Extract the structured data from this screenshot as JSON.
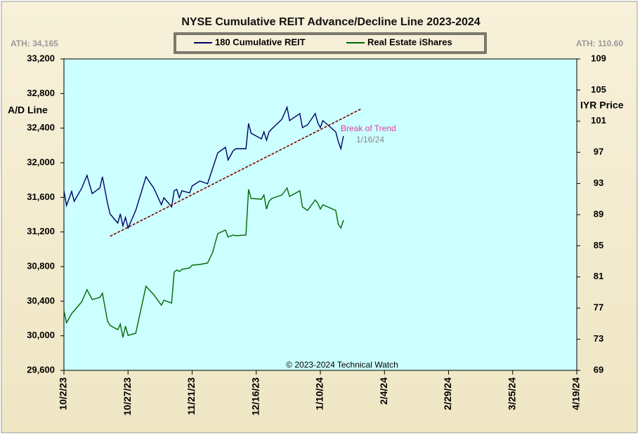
{
  "chart_data": {
    "type": "line",
    "title": "NYSE Cumulative  REIT Advance/Decline  Line 2023-2024",
    "y_label": "A/D Line",
    "y2_label": "IYR Price",
    "ath_left": "ATH: 34,165",
    "ath_right": "ATH: 110.60",
    "copyright": "© 2023-2024  Technical  Watch",
    "annotations": [
      "Break  of Trend",
      "1/16/24"
    ],
    "xlim": [
      "2023-10-02",
      "2024-04-19"
    ],
    "xticks": [
      {
        "value": "2023-10-02",
        "label": "10/2/23"
      },
      {
        "value": "2023-10-27",
        "label": "10/27/23"
      },
      {
        "value": "2023-11-21",
        "label": "11/21/23"
      },
      {
        "value": "2023-12-16",
        "label": "12/16/23"
      },
      {
        "value": "2024-01-10",
        "label": "1/10/24"
      },
      {
        "value": "2024-02-04",
        "label": "2/4/24"
      },
      {
        "value": "2024-02-29",
        "label": "2/29/24"
      },
      {
        "value": "2024-03-25",
        "label": "3/25/24"
      },
      {
        "value": "2024-04-19",
        "label": "4/19/24"
      }
    ],
    "ylim": [
      29600,
      33200
    ],
    "yticks": [
      {
        "value": 29600,
        "label": "29,600"
      },
      {
        "value": 30000,
        "label": "30,000"
      },
      {
        "value": 30400,
        "label": "30,400"
      },
      {
        "value": 30800,
        "label": "30,800"
      },
      {
        "value": 31200,
        "label": "31,200"
      },
      {
        "value": 31600,
        "label": "31,600"
      },
      {
        "value": 32000,
        "label": "32,000"
      },
      {
        "value": 32400,
        "label": "32,400"
      },
      {
        "value": 32800,
        "label": "32,800"
      },
      {
        "value": 33200,
        "label": "33,200"
      }
    ],
    "y2lim": [
      69,
      109
    ],
    "y2ticks": [
      69,
      73,
      77,
      81,
      85,
      89,
      93,
      97,
      101,
      105,
      109
    ],
    "x": [
      "2023-10-02",
      "2023-10-03",
      "2023-10-05",
      "2023-10-06",
      "2023-10-09",
      "2023-10-11",
      "2023-10-13",
      "2023-10-16",
      "2023-10-17",
      "2023-10-19",
      "2023-10-20",
      "2023-10-23",
      "2023-10-24",
      "2023-10-25",
      "2023-10-26",
      "2023-10-27",
      "2023-10-30",
      "2023-11-03",
      "2023-11-06",
      "2023-11-09",
      "2023-11-10",
      "2023-11-13",
      "2023-11-14",
      "2023-11-15",
      "2023-11-16",
      "2023-11-17",
      "2023-11-20",
      "2023-11-21",
      "2023-11-24",
      "2023-11-27",
      "2023-11-29",
      "2023-12-01",
      "2023-12-04",
      "2023-12-05",
      "2023-12-07",
      "2023-12-08",
      "2023-12-12",
      "2023-12-13",
      "2023-12-14",
      "2023-12-18",
      "2023-12-19",
      "2023-12-20",
      "2023-12-21",
      "2023-12-22",
      "2023-12-26",
      "2023-12-28",
      "2023-12-29",
      "2024-01-02",
      "2024-01-03",
      "2024-01-05",
      "2024-01-08",
      "2024-01-09",
      "2024-01-10",
      "2024-01-11",
      "2024-01-16",
      "2024-01-17",
      "2024-01-18",
      "2024-01-19"
    ],
    "series": [
      {
        "name": "180 Cumulative REIT",
        "color": "#000066",
        "values": [
          31676,
          31505,
          31668,
          31554,
          31708,
          31854,
          31643,
          31708,
          31838,
          31530,
          31408,
          31303,
          31408,
          31270,
          31368,
          31246,
          31449,
          31838,
          31708,
          31514,
          31595,
          31489,
          31676,
          31692,
          31595,
          31676,
          31651,
          31732,
          31789,
          31757,
          31935,
          32114,
          32178,
          32032,
          32138,
          32162,
          32162,
          32454,
          32341,
          32276,
          32357,
          32260,
          32357,
          32389,
          32503,
          32641,
          32487,
          32568,
          32406,
          32438,
          32568,
          32462,
          32406,
          32487,
          32357,
          32243,
          32162,
          32308
        ]
      },
      {
        "name": "Real Estate iShares",
        "color": "#006600",
        "axis": "y2",
        "values": [
          76.66,
          75.13,
          76.3,
          76.66,
          77.83,
          79.36,
          78.1,
          78.37,
          78.91,
          75.31,
          74.77,
          74.23,
          74.95,
          73.23,
          74.68,
          73.5,
          73.77,
          79.81,
          78.73,
          77.38,
          78.01,
          77.65,
          81.61,
          81.88,
          81.7,
          81.97,
          82.15,
          82.51,
          82.6,
          82.78,
          84.14,
          86.57,
          87.02,
          86.12,
          86.39,
          86.3,
          86.39,
          92.24,
          91.07,
          90.98,
          91.52,
          89.72,
          90.71,
          91.07,
          91.52,
          92.42,
          91.34,
          92.06,
          89.99,
          89.54,
          90.89,
          90.44,
          89.72,
          90.26,
          89.54,
          87.74,
          87.29,
          88.28
        ]
      }
    ],
    "trend_line": {
      "color": "#800000",
      "x": [
        "2023-10-20",
        "2024-01-26"
      ],
      "values": [
        31149,
        32624
      ]
    }
  }
}
